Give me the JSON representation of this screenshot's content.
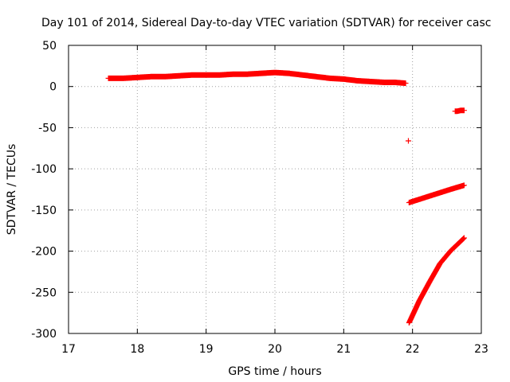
{
  "chart_data": {
    "type": "scatter",
    "title": "Day 101 of 2014, Sidereal Day-to-day VTEC variation (SDTVAR) for receiver casc",
    "xlabel": "GPS time / hours",
    "ylabel": "SDTVAR / TECUs",
    "xlim": [
      17,
      23
    ],
    "ylim": [
      -300,
      50
    ],
    "xticks": [
      "17",
      "18",
      "19",
      "20",
      "21",
      "22",
      "23"
    ],
    "yticks": [
      "50",
      "0",
      "-50",
      "-100",
      "-150",
      "-200",
      "-250",
      "-300"
    ],
    "grid": true,
    "legend": "none",
    "marker": "+",
    "color": "#ff0000",
    "series": [
      {
        "x": [
          17.58,
          17.8,
          18.0,
          18.2,
          18.4,
          18.6,
          18.8,
          19.0,
          19.2,
          19.4,
          19.6,
          19.8,
          20.0,
          20.2,
          20.4,
          20.6,
          20.8,
          21.0,
          21.2,
          21.4,
          21.6,
          21.75,
          21.9
        ],
        "y": [
          10,
          10,
          11,
          12,
          12,
          13,
          14,
          14,
          14,
          15,
          15,
          16,
          17,
          16,
          14,
          12,
          10,
          9,
          7,
          6,
          5,
          5,
          4
        ]
      },
      {
        "x": [
          21.94
        ],
        "y": [
          -66
        ]
      },
      {
        "x": [
          22.62,
          22.65,
          22.7,
          22.75
        ],
        "y": [
          -30,
          -30,
          -29,
          -29
        ]
      },
      {
        "x": [
          21.95,
          22.1,
          22.25,
          22.4,
          22.55,
          22.75
        ],
        "y": [
          -141,
          -137,
          -133,
          -129,
          -125,
          -120
        ]
      },
      {
        "x": [
          21.95,
          22.1,
          22.25,
          22.4,
          22.55,
          22.75
        ],
        "y": [
          -287,
          -260,
          -237,
          -215,
          -200,
          -184
        ]
      }
    ]
  }
}
